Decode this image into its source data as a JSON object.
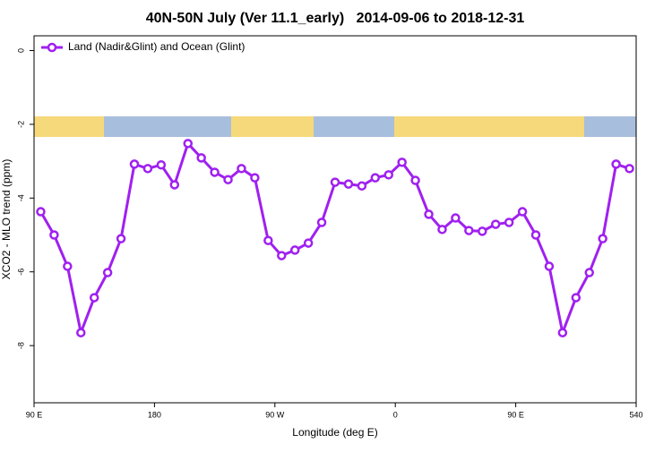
{
  "chart_data": {
    "type": "line",
    "title": "40N-50N July (Ver 11.1_early)   2014-09-06 to 2018-12-31",
    "x_label": "Longitude (deg E)",
    "y_label": "XCO2 - MLO trend (ppm)",
    "x": [
      95,
      105,
      115,
      125,
      135,
      145,
      155,
      165,
      175,
      185,
      195,
      205,
      215,
      225,
      235,
      245,
      255,
      265,
      275,
      285,
      295,
      305,
      315,
      325,
      335,
      345,
      355,
      365,
      375,
      385,
      395,
      405,
      415,
      425,
      435,
      445,
      455,
      465,
      475,
      485,
      495,
      505,
      515,
      525,
      535
    ],
    "series": [
      {
        "name": "Land (Nadir&Glint) and Ocean (Glint)",
        "color": "#a020f0",
        "values": [
          -4.37,
          -5.0,
          -5.85,
          -7.65,
          -6.7,
          -6.02,
          -5.1,
          -3.08,
          -3.2,
          -3.1,
          -3.64,
          -2.52,
          -2.91,
          -3.3,
          -3.5,
          -3.2,
          -3.45,
          -5.15,
          -5.56,
          -5.41,
          -5.22,
          -4.66,
          -3.57,
          -3.62,
          -3.67,
          -3.45,
          -3.37,
          -3.03,
          -3.52,
          -4.44,
          -4.85,
          -4.54,
          -4.88,
          -4.9,
          -4.71,
          -4.66,
          -4.37,
          -5.0,
          -5.85,
          -7.65,
          -6.7,
          -6.02,
          -5.1,
          -3.08,
          -3.2
        ]
      }
    ],
    "xlim": [
      90,
      540
    ],
    "xticks": [
      {
        "value": 90,
        "label": "90 E"
      },
      180,
      {
        "value": 270,
        "label": "90 W"
      },
      {
        "value": 360,
        "label": "0"
      },
      {
        "value": 450,
        "label": "90 E"
      },
      540
    ],
    "ylim": [
      -9.55,
      0.4
    ],
    "yticks": [
      0,
      -2,
      -4,
      -6,
      -8
    ],
    "legend": "top-left"
  }
}
